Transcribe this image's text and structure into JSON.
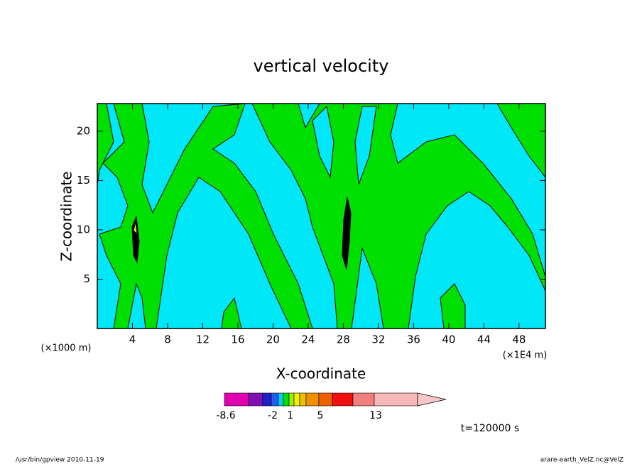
{
  "chart_data": {
    "type": "contour",
    "title": "vertical velocity",
    "xlabel": "X-coordinate",
    "ylabel": "Z-coordinate",
    "x_unit_left": "(×1000 m)",
    "x_unit_right": "(×1E4 m)",
    "time_label": "t=120000 s",
    "footer_left": "/usr/bin/gpview   2010-11-19",
    "footer_right": "arare-earth_VelZ.nc@VelZ",
    "xlim": [
      0,
      51
    ],
    "ylim": [
      0,
      22.8
    ],
    "xticks": [
      4,
      8,
      12,
      16,
      20,
      24,
      28,
      32,
      36,
      40,
      44,
      48
    ],
    "yticks": [
      5,
      10,
      15,
      20
    ],
    "colorbar": {
      "colors": [
        "#e000b0",
        "#8010b0",
        "#2020d0",
        "#2060f0",
        "#00d0f0",
        "#00e000",
        "#a0f000",
        "#f0f000",
        "#f0c000",
        "#f09000",
        "#f06000",
        "#f01010",
        "#f08080",
        "#f8b8b8"
      ],
      "extend_color": "#f8c8c8",
      "labels": [
        -8.6,
        -2,
        1,
        5,
        13
      ]
    }
  }
}
